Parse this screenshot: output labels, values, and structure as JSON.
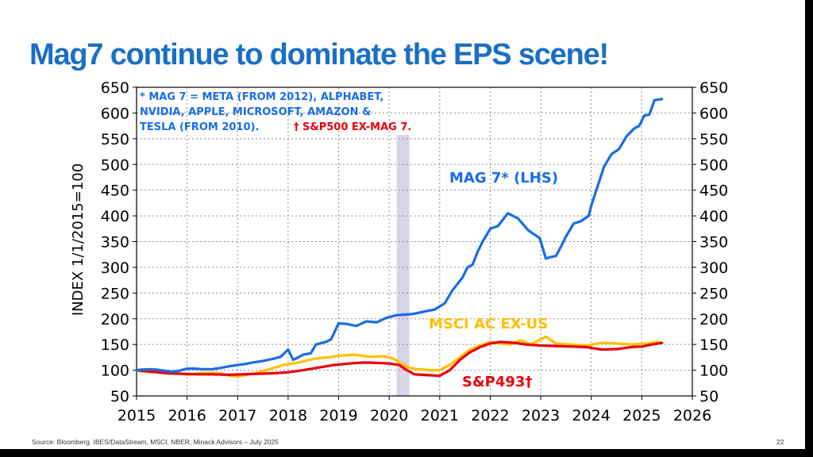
{
  "slide": {
    "title": "Mag7 continue to dominate the EPS scene!",
    "source": "Source: Bloomberg, IBES/DataStream, MSCI, NBER; Minack Advisors – July 2025",
    "page_number": "22"
  },
  "colors": {
    "title": "#1a6fc4",
    "mag7": "#1a6be8",
    "msci": "#ffc000",
    "sp493": "#e8000b",
    "recession": "#d9d4e7",
    "grid": "#8c8c8c"
  },
  "chart_data": {
    "type": "line",
    "ylabel": "INDEX 1/1/2015=100",
    "ylim": [
      50,
      650
    ],
    "yticks": [
      50,
      100,
      150,
      200,
      250,
      300,
      350,
      400,
      450,
      500,
      550,
      600,
      650
    ],
    "xlim": [
      2015,
      2026
    ],
    "xticks": [
      2015,
      2016,
      2017,
      2018,
      2019,
      2020,
      2021,
      2022,
      2023,
      2024,
      2025,
      2026
    ],
    "grid": true,
    "recession_band": [
      2020.15,
      2020.4
    ],
    "note": {
      "line1": "* MAG 7 = META (FROM 2012), ALPHABET,",
      "line2": "NVIDIA, APPLE, MICROSOFT, AMAZON &",
      "line3": "TESLA (FROM 2010).",
      "line3_red": "† S&P500 EX-MAG 7."
    },
    "series": [
      {
        "name": "MAG 7* (LHS)",
        "color_key": "mag7",
        "x": [
          2015.0,
          2015.1,
          2015.25,
          2015.4,
          2015.55,
          2015.7,
          2015.85,
          2016.0,
          2016.15,
          2016.3,
          2016.5,
          2016.7,
          2016.85,
          2017.0,
          2017.15,
          2017.3,
          2017.5,
          2017.7,
          2017.85,
          2018.0,
          2018.1,
          2018.3,
          2018.45,
          2018.55,
          2018.75,
          2018.85,
          2019.0,
          2019.15,
          2019.35,
          2019.55,
          2019.75,
          2019.95,
          2020.15,
          2020.3,
          2020.45,
          2020.6,
          2020.75,
          2020.9,
          2021.1,
          2021.25,
          2021.45,
          2021.55,
          2021.65,
          2021.75,
          2021.85,
          2022.0,
          2022.15,
          2022.35,
          2022.55,
          2022.75,
          2022.9,
          2022.98,
          2023.1,
          2023.2,
          2023.3,
          2023.4,
          2023.5,
          2023.65,
          2023.8,
          2023.95,
          2024.0,
          2024.1,
          2024.25,
          2024.4,
          2024.55,
          2024.7,
          2024.85,
          2024.95,
          2025.05,
          2025.15,
          2025.25,
          2025.4
        ],
        "values": [
          100,
          101,
          102,
          101,
          99,
          97,
          99,
          103,
          103,
          102,
          102,
          105,
          108,
          110,
          112,
          115,
          118,
          122,
          126,
          140,
          120,
          130,
          133,
          150,
          155,
          160,
          191,
          190,
          186,
          195,
          193,
          202,
          207,
          208,
          209,
          212,
          215,
          218,
          230,
          255,
          280,
          300,
          305,
          330,
          350,
          375,
          380,
          405,
          395,
          372,
          362,
          357,
          317,
          320,
          322,
          340,
          360,
          385,
          390,
          400,
          420,
          450,
          495,
          520,
          530,
          555,
          570,
          575,
          595,
          597,
          625,
          627
        ]
      },
      {
        "name": "MSCI AC EX-US",
        "color_key": "msci",
        "x": [
          2015.0,
          2015.3,
          2015.6,
          2015.9,
          2016.0,
          2016.3,
          2016.6,
          2016.85,
          2017.0,
          2017.3,
          2017.6,
          2017.9,
          2018.2,
          2018.5,
          2018.8,
          2019.0,
          2019.3,
          2019.6,
          2019.9,
          2020.1,
          2020.25,
          2020.4,
          2020.55,
          2020.7,
          2020.85,
          2021.0,
          2021.2,
          2021.4,
          2021.6,
          2021.8,
          2022.0,
          2022.2,
          2022.4,
          2022.6,
          2022.8,
          2023.0,
          2023.1,
          2023.3,
          2023.6,
          2023.9,
          2024.2,
          2024.5,
          2024.8,
          2025.1,
          2025.3,
          2025.4
        ],
        "values": [
          99,
          96,
          97,
          93,
          91,
          95,
          95,
          89,
          88,
          93,
          101,
          110,
          115,
          122,
          125,
          128,
          130,
          126,
          127,
          122,
          112,
          105,
          102,
          101,
          100,
          100,
          110,
          125,
          140,
          148,
          155,
          152,
          150,
          158,
          150,
          160,
          165,
          152,
          150,
          148,
          153,
          152,
          150,
          152,
          155,
          153
        ]
      },
      {
        "name": "S&P493†",
        "color_key": "sp493",
        "x": [
          2015.0,
          2015.3,
          2015.6,
          2015.9,
          2016.2,
          2016.5,
          2016.8,
          2017.1,
          2017.4,
          2017.7,
          2018.0,
          2018.3,
          2018.6,
          2018.9,
          2019.2,
          2019.5,
          2019.8,
          2020.0,
          2020.2,
          2020.35,
          2020.5,
          2020.65,
          2020.85,
          2021.0,
          2021.2,
          2021.4,
          2021.6,
          2021.8,
          2022.0,
          2022.2,
          2022.5,
          2022.7,
          2023.0,
          2023.3,
          2023.6,
          2023.9,
          2024.2,
          2024.5,
          2024.8,
          2025.0,
          2025.2,
          2025.4
        ],
        "values": [
          100,
          97,
          94,
          93,
          92,
          92,
          91,
          92,
          93,
          94,
          96,
          100,
          105,
          110,
          113,
          115,
          114,
          113,
          110,
          100,
          92,
          91,
          90,
          89,
          100,
          120,
          135,
          145,
          152,
          155,
          153,
          150,
          148,
          147,
          146,
          145,
          140,
          141,
          145,
          146,
          150,
          153
        ]
      }
    ],
    "annotations": {
      "mag7_label": "MAG 7* (LHS)",
      "msci_label": "MSCI AC EX-US",
      "sp493_label": "S&P493†"
    }
  }
}
